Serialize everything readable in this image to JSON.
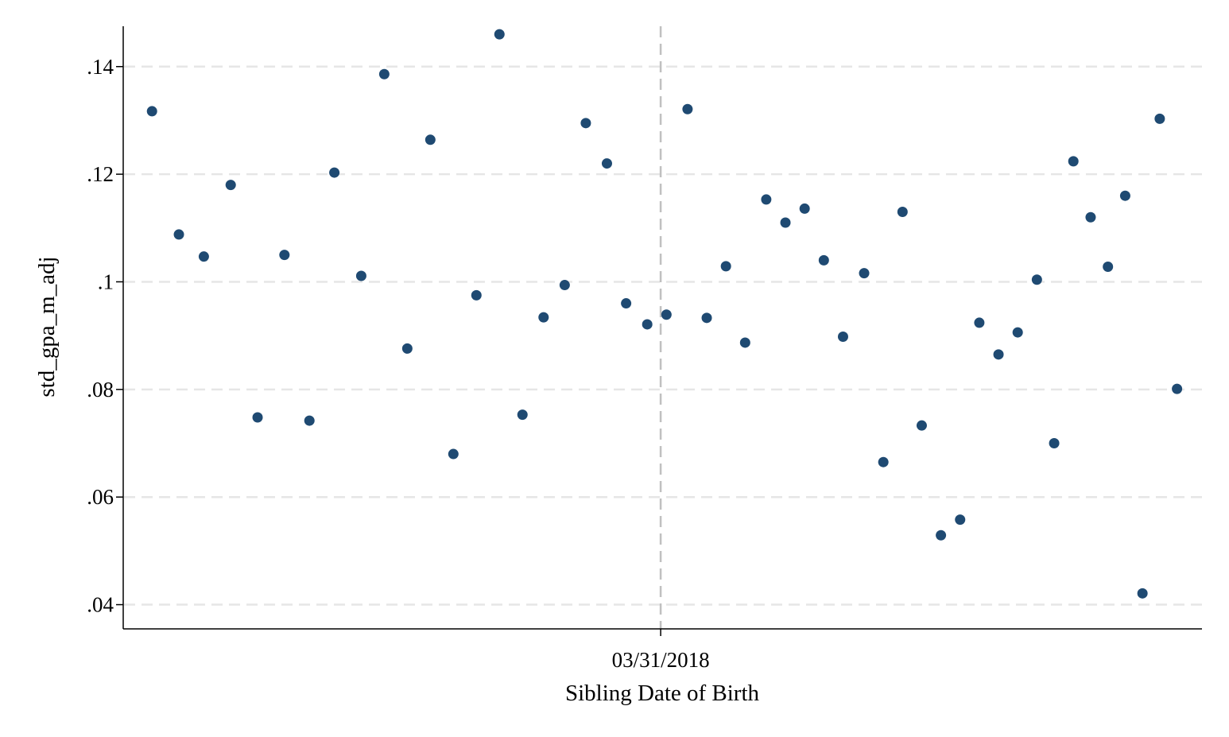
{
  "chart_data": {
    "type": "scatter",
    "xlabel": "Sibling Date of Birth",
    "ylabel": "std_gpa_m_adj",
    "ylim": [
      0.0355,
      0.1475
    ],
    "xlim": [
      -28,
      28.2
    ],
    "x_tick_labels": [
      {
        "x": 0,
        "label": "03/31/2018"
      }
    ],
    "y_ticks": [
      {
        "value": 0.04,
        "label": ".04"
      },
      {
        "value": 0.06,
        "label": ".06"
      },
      {
        "value": 0.08,
        "label": ".08"
      },
      {
        "value": 0.1,
        "label": ".1"
      },
      {
        "value": 0.12,
        "label": ".12"
      },
      {
        "value": 0.14,
        "label": ".14"
      }
    ],
    "grid": "horizontal dashed",
    "cutoff_line": {
      "x": 0,
      "style": "dashed"
    },
    "marker_color": "#1f4a72",
    "grid_color": "#e6e6e6",
    "cutoff_color": "#c0c0c0",
    "series": [
      {
        "points": [
          [
            -26.5,
            0.1317
          ],
          [
            -25.1,
            0.1088
          ],
          [
            -23.8,
            0.1047
          ],
          [
            -22.4,
            0.118
          ],
          [
            -21.0,
            0.0748
          ],
          [
            -19.6,
            0.105
          ],
          [
            -18.3,
            0.0742
          ],
          [
            -17.0,
            0.1203
          ],
          [
            -15.6,
            0.1011
          ],
          [
            -14.4,
            0.1386
          ],
          [
            -13.2,
            0.0876
          ],
          [
            -12.0,
            0.1264
          ],
          [
            -10.8,
            0.068
          ],
          [
            -9.6,
            0.0975
          ],
          [
            -8.4,
            0.146
          ],
          [
            -7.2,
            0.0753
          ],
          [
            -6.1,
            0.0934
          ],
          [
            -5.0,
            0.0994
          ],
          [
            -3.9,
            0.1295
          ],
          [
            -2.8,
            0.122
          ],
          [
            -1.8,
            0.096
          ],
          [
            -0.7,
            0.0921
          ],
          [
            0.3,
            0.0939
          ],
          [
            1.4,
            0.1321
          ],
          [
            2.4,
            0.0933
          ],
          [
            3.4,
            0.1029
          ],
          [
            4.4,
            0.0887
          ],
          [
            5.5,
            0.1153
          ],
          [
            6.5,
            0.111
          ],
          [
            7.5,
            0.1136
          ],
          [
            8.5,
            0.104
          ],
          [
            9.5,
            0.0898
          ],
          [
            10.6,
            0.1016
          ],
          [
            11.6,
            0.0665
          ],
          [
            12.6,
            0.113
          ],
          [
            13.6,
            0.0733
          ],
          [
            14.6,
            0.0529
          ],
          [
            15.6,
            0.0558
          ],
          [
            16.6,
            0.0924
          ],
          [
            17.6,
            0.0865
          ],
          [
            18.6,
            0.0906
          ],
          [
            19.6,
            0.1004
          ],
          [
            20.5,
            0.07
          ],
          [
            21.5,
            0.1224
          ],
          [
            22.4,
            0.112
          ],
          [
            23.3,
            0.1028
          ],
          [
            24.2,
            0.116
          ],
          [
            25.1,
            0.0421
          ],
          [
            26.0,
            0.1303
          ],
          [
            26.9,
            0.0801
          ]
        ]
      }
    ]
  }
}
